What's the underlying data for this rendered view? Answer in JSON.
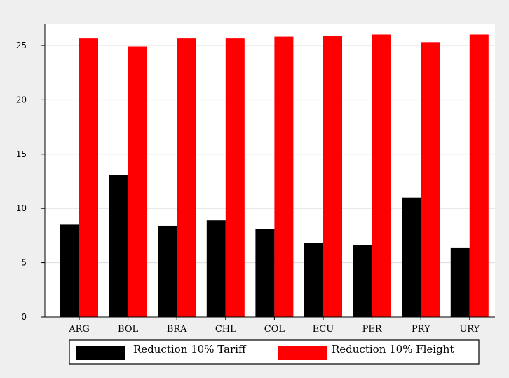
{
  "chart_data": {
    "type": "bar",
    "title": "",
    "xlabel": "",
    "ylabel": "",
    "categories": [
      "ARG",
      "BOL",
      "BRA",
      "CHL",
      "COL",
      "ECU",
      "PER",
      "PRY",
      "URY"
    ],
    "series": [
      {
        "name": "Reduction 10% Tariff",
        "color": "#000000",
        "values": [
          8.5,
          13.1,
          8.4,
          8.9,
          8.1,
          6.8,
          6.6,
          11.0,
          6.4
        ]
      },
      {
        "name": "Reduction 10% Fleight",
        "color": "#ff0000",
        "values": [
          25.7,
          24.9,
          25.7,
          25.7,
          25.8,
          25.9,
          26.0,
          25.3,
          26.0
        ]
      }
    ],
    "ylim": [
      0,
      27
    ],
    "yticks": [
      0,
      5,
      10,
      15,
      20,
      25
    ],
    "ytick_labels": [
      "0",
      "5",
      "10",
      "15",
      "20",
      "25"
    ],
    "grid": "horizontal",
    "legend_position": "bottom",
    "colors": {
      "page_background": "#efefef",
      "plot_background": "#ffffff",
      "grid": "#dcdcdc"
    }
  }
}
